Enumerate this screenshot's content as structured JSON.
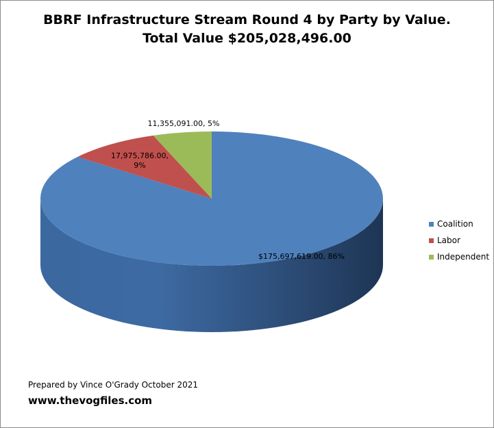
{
  "chart_data": {
    "type": "pie",
    "title_line1": "BBRF Infrastructure Stream Round 4 by Party by Value.",
    "title_line2": "Total Value $205,028,496.00",
    "slices": [
      {
        "name": "Coalition",
        "value": 175697619.0,
        "percent": 86,
        "label": "$175,697,619.00, 86%",
        "color": "#4f81bd",
        "side": "#3b6296"
      },
      {
        "name": "Labor",
        "value": 17975786.0,
        "percent": 9,
        "label_line1": "17,975,786.00,",
        "label_line2": "9%",
        "color": "#c0504d",
        "side": "#8f3b39"
      },
      {
        "name": "Independent",
        "value": 11355091.0,
        "percent": 5,
        "label": "11,355,091.00, 5%",
        "color": "#9bbb59",
        "side": "#728a42"
      }
    ],
    "legend_position": "right"
  },
  "footer": {
    "prepared_by": "Prepared by Vince O'Grady October 2021",
    "website": "www.thevogfiles.com"
  }
}
